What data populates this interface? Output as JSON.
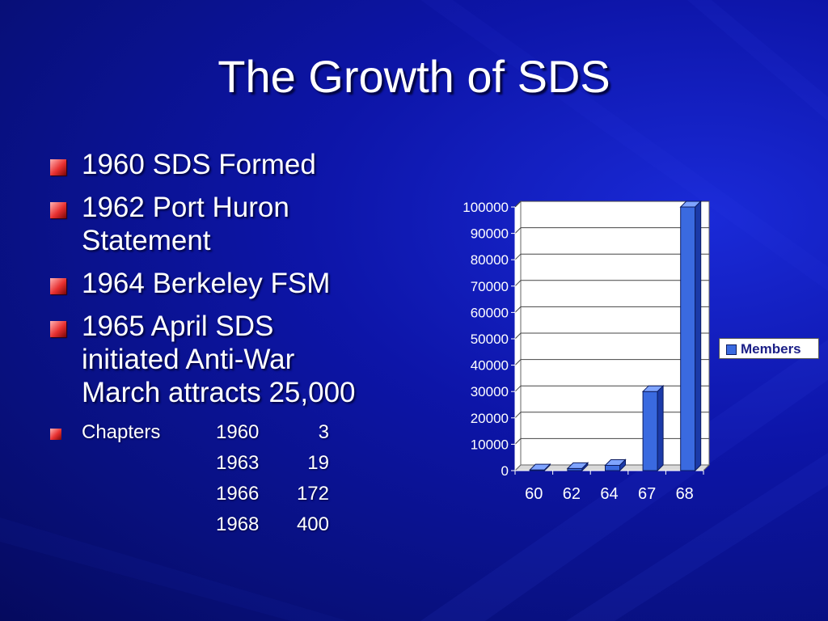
{
  "slide": {
    "title": "The Growth of SDS",
    "bullets": [
      {
        "lines": [
          "1960 SDS Formed"
        ]
      },
      {
        "lines": [
          "1962 Port Huron",
          "Statement"
        ]
      },
      {
        "lines": [
          "1964 Berkeley FSM"
        ]
      },
      {
        "lines": [
          "1965 April SDS",
          "initiated Anti-War",
          "March attracts 25,000"
        ]
      }
    ],
    "chapters": {
      "label": "Chapters",
      "rows": [
        {
          "year": "1960",
          "count": "3"
        },
        {
          "year": "1963",
          "count": "19"
        },
        {
          "year": "1966",
          "count": "172"
        },
        {
          "year": "1968",
          "count": "400"
        }
      ]
    },
    "colors": {
      "bullet": "#e83030",
      "bar_front": "#3a6ae0",
      "bar_top": "#7fa4ff",
      "bar_side": "#1b3aa8"
    }
  },
  "chart_data": {
    "type": "bar",
    "categories": [
      "60",
      "62",
      "64",
      "67",
      "68"
    ],
    "series": [
      {
        "name": "Members",
        "values": [
          250,
          800,
          2000,
          30000,
          100000
        ]
      }
    ],
    "ylim": [
      0,
      100000
    ],
    "yticks": [
      0,
      10000,
      20000,
      30000,
      40000,
      50000,
      60000,
      70000,
      80000,
      90000,
      100000
    ],
    "grid": true,
    "legend_position": "right",
    "three_d": true
  }
}
